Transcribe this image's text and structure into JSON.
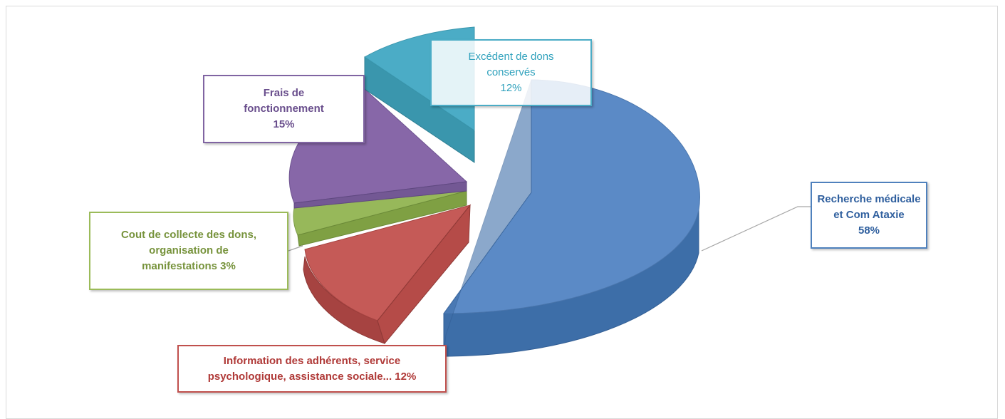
{
  "chart_data": {
    "type": "pie",
    "style": "3d-exploded",
    "slices": [
      {
        "label_lines": [
          "Recherche médicale",
          "et Com Ataxie"
        ],
        "percent_text": "58%",
        "value": 58,
        "color": "#4f81bd",
        "bold": true
      },
      {
        "label_lines": [
          "Information des adhérents, service",
          "psychologique, assistance sociale... 12%"
        ],
        "percent_text": "",
        "value": 12,
        "color": "#c0504d",
        "bold": true
      },
      {
        "label_lines": [
          "Cout de collecte des dons,",
          "organisation de",
          "manifestations 3%"
        ],
        "percent_text": "",
        "value": 3,
        "color": "#9bbb59",
        "bold": true
      },
      {
        "label_lines": [
          "Frais de",
          "fonctionnement"
        ],
        "percent_text": "15%",
        "value": 15,
        "color": "#8064a2",
        "bold": true
      },
      {
        "label_lines": [
          "Excédent de dons",
          "conservés"
        ],
        "percent_text": "12%",
        "value": 12,
        "color": "#4bacc6",
        "bold": false
      }
    ],
    "legend": "none"
  }
}
